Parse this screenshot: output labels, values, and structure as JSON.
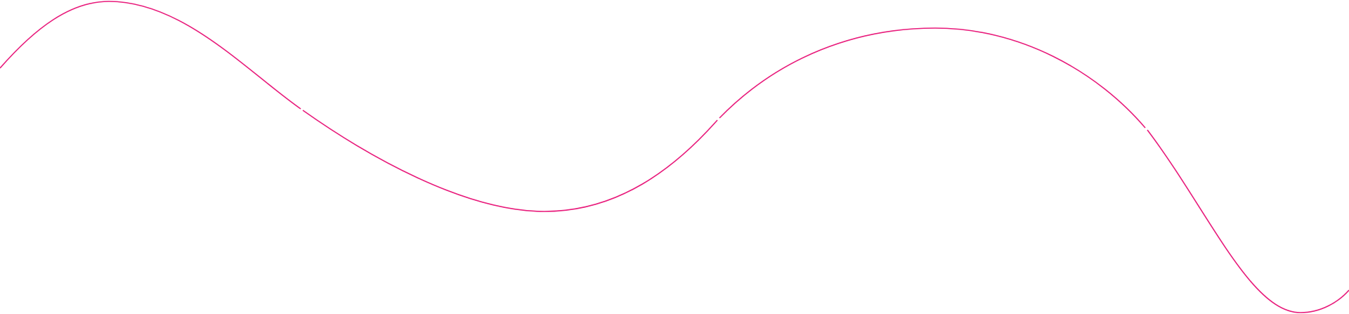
{
  "decoration": {
    "type": "wave-line",
    "stroke_color": "#e8197a",
    "background_color": "#ffffff",
    "segments": 4
  }
}
